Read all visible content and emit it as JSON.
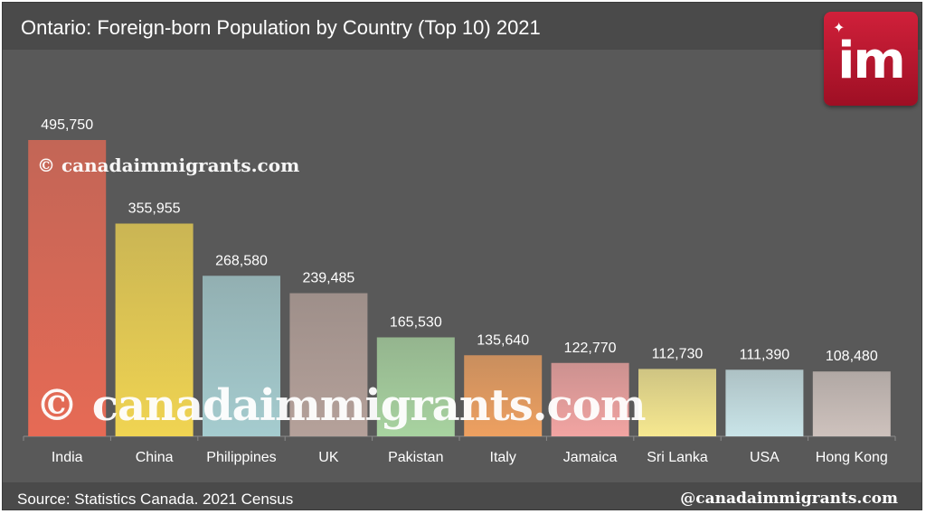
{
  "title": "Ontario: Foreign-born Population by Country (Top 10) 2021",
  "source": "Source: Statistics Canada. 2021 Census",
  "handle": "@canadaimmigrants.com",
  "watermark": "© canadaimmigrants.com",
  "logo": {
    "text": "im",
    "icon": "maple-leaf-icon"
  },
  "colors": {
    "background": "#595959",
    "bars": [
      "#e66a55",
      "#f0d452",
      "#a5cccf",
      "#b5a19a",
      "#a8d3a0",
      "#eea060",
      "#f2a4a2",
      "#f6e890",
      "#c9e4e8",
      "#cec2bd"
    ]
  },
  "chart_data": {
    "type": "bar",
    "categories": [
      "India",
      "China",
      "Philippines",
      "UK",
      "Pakistan",
      "Italy",
      "Jamaica",
      "Sri Lanka",
      "USA",
      "Hong Kong"
    ],
    "values": [
      495750,
      355955,
      268580,
      239485,
      165530,
      135640,
      122770,
      112730,
      111390,
      108480
    ],
    "value_labels": [
      "495,750",
      "355,955",
      "268,580",
      "239,485",
      "165,530",
      "135,640",
      "122,770",
      "112,730",
      "111,390",
      "108,480"
    ],
    "title": "Ontario: Foreign-born Population by Country (Top 10) 2021",
    "xlabel": "",
    "ylabel": "",
    "ylim": [
      0,
      495750
    ],
    "grid": false,
    "legend": "none"
  }
}
